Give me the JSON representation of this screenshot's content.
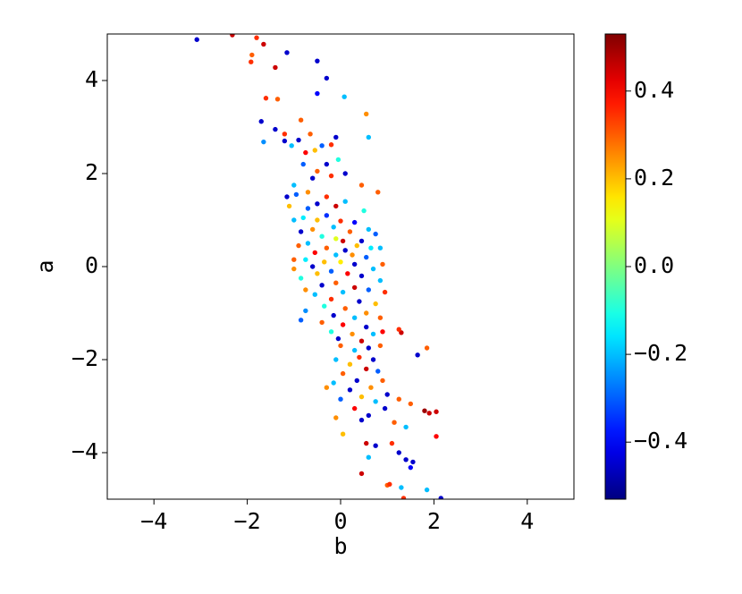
{
  "chart_data": {
    "type": "scatter",
    "x_label": "b",
    "y_label": "a",
    "xlim": [
      -5,
      5
    ],
    "ylim": [
      -5,
      5
    ],
    "xticks": [
      {
        "value": -4,
        "label": "−4"
      },
      {
        "value": -2,
        "label": "−2"
      },
      0,
      2,
      4
    ],
    "yticks": [
      {
        "value": -4,
        "label": "−4"
      },
      {
        "value": -2,
        "label": "−2"
      },
      0,
      2,
      4
    ],
    "colormap": "jet",
    "clim": [
      -0.53,
      0.53
    ],
    "cticks": [
      {
        "value": -0.4,
        "label": "−0.4"
      },
      {
        "value": -0.2,
        "label": "−0.2"
      },
      {
        "value": 0,
        "label": "0.0"
      },
      0.2,
      0.4
    ],
    "x": [
      -3.08,
      -2.32,
      -1.8,
      -1.65,
      -1.9,
      -1.92,
      -1.15,
      -1.4,
      -0.5,
      -0.3,
      -0.5,
      0.08,
      -1.35,
      -1.6,
      -1.7,
      -1.65,
      -1.4,
      -1.2,
      -0.85,
      0.55,
      0.6,
      -0.65,
      -0.9,
      -0.4,
      -0.1,
      -0.2,
      -1.05,
      -1.2,
      -0.75,
      -0.55,
      -0.05,
      -0.3,
      -0.8,
      -0.5,
      0.1,
      -0.2,
      -0.6,
      -1.0,
      0.45,
      0.8,
      -1.15,
      -0.95,
      -0.7,
      -0.3,
      0.1,
      -0.1,
      -0.5,
      -0.7,
      -1.1,
      0.5,
      -0.3,
      -0.8,
      -1.0,
      -0.5,
      0.0,
      0.3,
      -0.15,
      0.6,
      -0.6,
      -0.85,
      0.2,
      0.75,
      -0.4,
      -0.1,
      0.05,
      -0.7,
      0.45,
      0.35,
      -0.9,
      0.85,
      0.65,
      -0.3,
      0.1,
      -0.55,
      -0.1,
      0.25,
      0.55,
      -1.0,
      -0.75,
      -0.35,
      0.0,
      0.9,
      0.3,
      -0.6,
      -1.0,
      0.7,
      -0.2,
      0.15,
      -0.5,
      0.45,
      -0.85,
      0.85,
      -0.1,
      -0.4,
      0.3,
      -0.75,
      0.6,
      0.05,
      -0.55,
      0.95,
      -0.2,
      0.4,
      0.75,
      -0.35,
      0.1,
      -0.75,
      0.55,
      -0.15,
      0.3,
      0.85,
      -0.85,
      -0.4,
      0.05,
      0.55,
      -0.2,
      0.25,
      0.7,
      0.9,
      -0.05,
      0.45,
      1.3,
      1.25,
      0.0,
      0.6,
      0.3,
      0.85,
      1.85,
      1.65,
      0.4,
      0.7,
      -0.1,
      0.2,
      0.55,
      0.8,
      0.05,
      0.35,
      0.9,
      -0.15,
      0.65,
      0.2,
      -0.3,
      1.0,
      0.45,
      0.0,
      1.25,
      0.75,
      1.5,
      0.3,
      0.95,
      1.8,
      1.9,
      2.05,
      0.6,
      -0.1,
      0.45,
      1.15,
      1.4,
      0.05,
      2.05,
      0.55,
      1.1,
      0.75,
      1.25,
      0.6,
      1.4,
      1.55,
      1.5,
      0.45,
      1.0,
      1.3,
      1.05,
      1.85,
      1.35,
      2.15
    ],
    "values": [
      4.88,
      4.98,
      4.92,
      4.78,
      4.55,
      4.4,
      4.6,
      4.28,
      4.42,
      4.05,
      3.72,
      3.65,
      3.6,
      3.62,
      3.12,
      2.68,
      2.95,
      2.85,
      3.15,
      3.28,
      2.78,
      2.85,
      2.72,
      2.6,
      2.78,
      2.62,
      2.6,
      2.7,
      2.45,
      2.5,
      2.3,
      2.2,
      2.2,
      2.05,
      2.0,
      1.95,
      1.9,
      1.75,
      1.75,
      1.6,
      1.5,
      1.55,
      1.6,
      1.5,
      1.4,
      1.3,
      1.35,
      1.25,
      1.3,
      1.2,
      1.1,
      1.05,
      1.0,
      1.0,
      0.98,
      0.95,
      0.85,
      0.8,
      0.8,
      0.75,
      0.75,
      0.7,
      0.65,
      0.6,
      0.55,
      0.5,
      0.55,
      0.45,
      0.45,
      0.4,
      0.4,
      0.4,
      0.35,
      0.3,
      0.25,
      0.25,
      0.2,
      0.15,
      0.15,
      0.1,
      0.1,
      0.05,
      0.05,
      0.0,
      -0.05,
      -0.05,
      -0.1,
      -0.15,
      -0.15,
      -0.2,
      -0.25,
      -0.3,
      -0.35,
      -0.4,
      -0.45,
      -0.5,
      -0.5,
      -0.55,
      -0.6,
      -0.55,
      -0.7,
      -0.75,
      -0.8,
      -0.85,
      -0.9,
      -0.95,
      -1.0,
      -1.05,
      -1.1,
      -1.1,
      -1.15,
      -1.2,
      -1.25,
      -1.3,
      -1.4,
      -1.45,
      -1.45,
      -1.4,
      -1.55,
      -1.6,
      -1.42,
      -1.35,
      -1.7,
      -1.75,
      -1.8,
      -1.7,
      -1.75,
      -1.9,
      -1.95,
      -2.0,
      -2.0,
      -2.1,
      -2.2,
      -2.25,
      -2.3,
      -2.45,
      -2.45,
      -2.5,
      -2.6,
      -2.65,
      -2.6,
      -2.75,
      -2.8,
      -2.85,
      -2.85,
      -2.9,
      -2.95,
      -3.05,
      -3.05,
      -3.1,
      -3.15,
      -3.12,
      -3.2,
      -3.25,
      -3.3,
      -3.35,
      -3.45,
      -3.6,
      -3.65,
      -3.8,
      -3.8,
      -3.85,
      -4.0,
      -4.1,
      -4.15,
      -4.2,
      -4.32,
      -4.45,
      -4.7,
      -4.75,
      -4.68,
      -4.8,
      -4.98,
      -4.98
    ],
    "c": [
      -0.45,
      0.45,
      0.35,
      0.45,
      0.3,
      0.35,
      -0.45,
      0.45,
      -0.45,
      -0.45,
      -0.4,
      -0.2,
      0.3,
      0.35,
      -0.45,
      -0.25,
      -0.45,
      0.35,
      0.3,
      0.25,
      -0.2,
      0.3,
      -0.45,
      -0.3,
      -0.45,
      0.35,
      -0.2,
      -0.45,
      0.4,
      0.2,
      -0.1,
      -0.45,
      -0.3,
      0.3,
      -0.45,
      0.35,
      -0.45,
      -0.2,
      0.3,
      0.3,
      -0.45,
      -0.3,
      0.25,
      0.35,
      -0.2,
      0.45,
      -0.45,
      -0.3,
      0.2,
      -0.1,
      -0.35,
      -0.15,
      -0.2,
      0.2,
      0.35,
      -0.4,
      -0.2,
      -0.2,
      0.25,
      -0.45,
      0.3,
      -0.3,
      -0.1,
      0.1,
      0.45,
      -0.2,
      -0.45,
      0.2,
      0.3,
      -0.2,
      -0.15,
      0.3,
      -0.45,
      0.4,
      -0.2,
      0.25,
      -0.3,
      0.3,
      -0.15,
      0.2,
      0.15,
      0.3,
      -0.45,
      -0.45,
      0.25,
      -0.2,
      -0.3,
      0.4,
      0.2,
      -0.45,
      -0.1,
      -0.2,
      0.3,
      -0.45,
      0.45,
      0.25,
      -0.3,
      -0.2,
      -0.2,
      0.35,
      0.35,
      -0.45,
      0.2,
      -0.1,
      0.3,
      -0.25,
      0.25,
      -0.45,
      -0.2,
      0.3,
      -0.3,
      0.3,
      0.4,
      -0.45,
      -0.1,
      0.25,
      -0.2,
      0.4,
      -0.45,
      0.45,
      0.45,
      0.35,
      0.3,
      -0.45,
      -0.2,
      0.3,
      0.3,
      -0.45,
      0.35,
      -0.45,
      -0.2,
      0.2,
      0.45,
      -0.3,
      0.3,
      -0.45,
      0.3,
      -0.2,
      0.25,
      -0.45,
      0.25,
      -0.45,
      0.2,
      -0.3,
      0.3,
      -0.2,
      0.3,
      0.4,
      -0.45,
      0.5,
      0.45,
      0.45,
      -0.45,
      0.25,
      -0.45,
      0.3,
      -0.2,
      0.2,
      0.4,
      0.45,
      0.35,
      -0.45,
      -0.45,
      -0.2,
      -0.45,
      -0.45,
      -0.4,
      0.45,
      0.3,
      -0.2,
      0.35,
      -0.2,
      0.35,
      -0.45
    ]
  }
}
